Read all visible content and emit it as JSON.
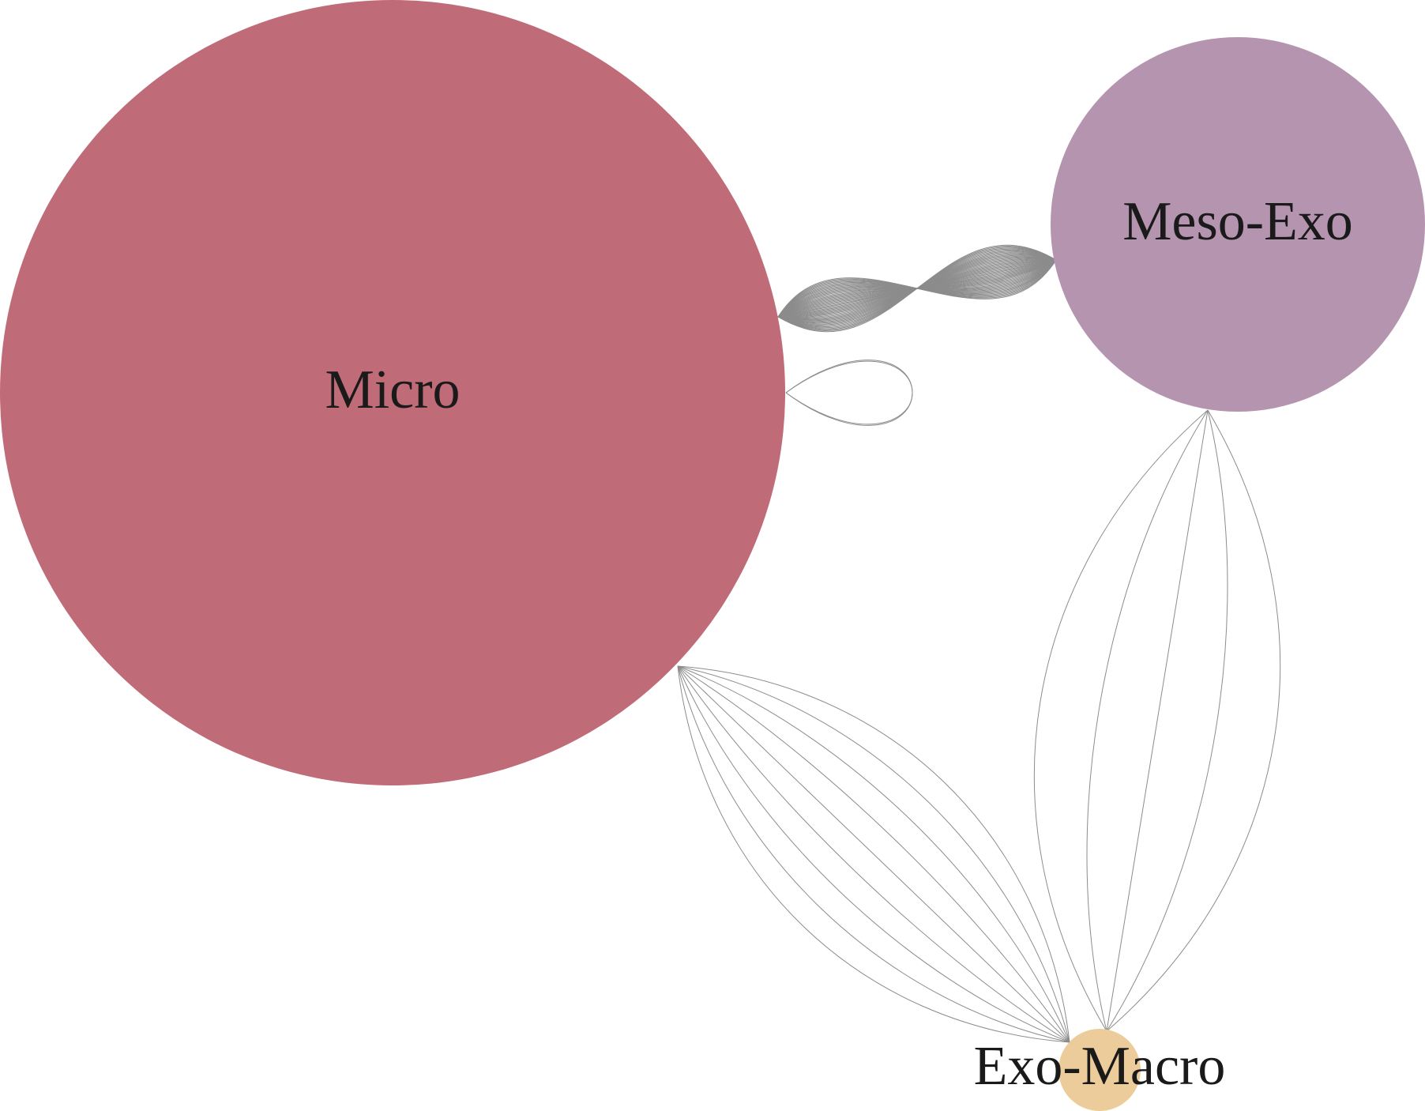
{
  "diagram": {
    "edge_color": "#8c8c8c",
    "nodes": [
      {
        "id": "micro",
        "label": "Micro",
        "color": "#c06c78"
      },
      {
        "id": "meso_exo",
        "label": "Meso-Exo",
        "color": "#b594b0"
      },
      {
        "id": "exo_macro",
        "label": "Exo-Macro",
        "color": "#ebcc9a"
      }
    ],
    "edges": [
      {
        "from": "micro",
        "to": "meso_exo",
        "count": 50
      },
      {
        "from": "micro",
        "to": "micro",
        "count": 2
      },
      {
        "from": "micro",
        "to": "exo_macro",
        "count": 9
      },
      {
        "from": "meso_exo",
        "to": "exo_macro",
        "count": 5
      }
    ]
  }
}
